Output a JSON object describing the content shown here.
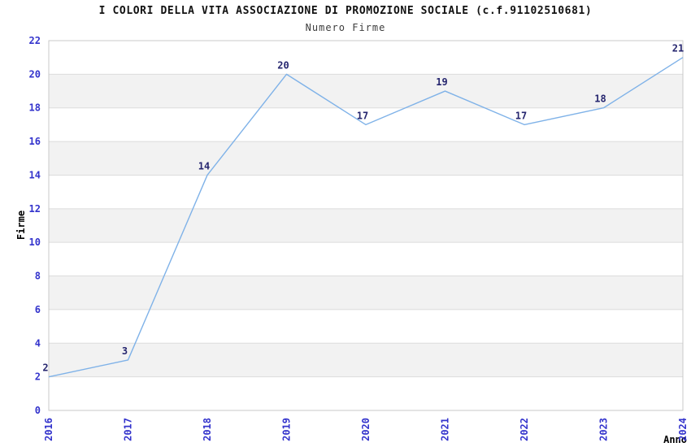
{
  "chart_data": {
    "type": "line",
    "title": "I COLORI DELLA VITA ASSOCIAZIONE DI PROMOZIONE SOCIALE (c.f.91102510681)",
    "subtitle": "Numero Firme",
    "xlabel": "Anno",
    "ylabel": "Firme",
    "categories": [
      "2016",
      "2017",
      "2018",
      "2019",
      "2020",
      "2021",
      "2022",
      "2023",
      "2024"
    ],
    "values": [
      2,
      3,
      14,
      20,
      17,
      19,
      17,
      18,
      21
    ],
    "ylim": [
      0,
      22
    ],
    "ytick_step": 2,
    "grid": true,
    "band_fill": "alternating-horizontal",
    "legend_position": "none",
    "point_labels_visible": true,
    "x_tick_rotation": -90
  },
  "colors": {
    "line": "#7fb2e8",
    "tick_label": "#3333cc",
    "point_label": "#26266f",
    "band": "#f2f2f2",
    "grid": "#dcdcdc",
    "frame": "#c9c9c9",
    "title": "#111111",
    "subtitle": "#3d3d3d",
    "axis_label": "#000000"
  }
}
